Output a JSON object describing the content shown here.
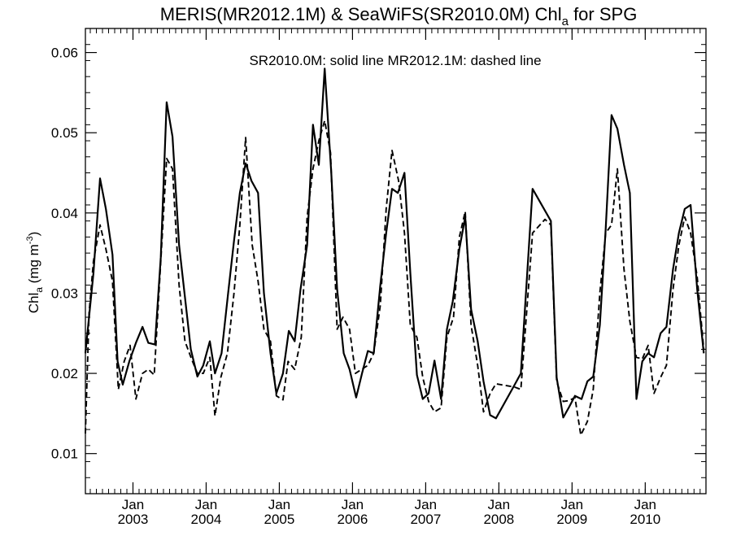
{
  "chart_data": {
    "type": "line",
    "title_main": "MERIS(MR2012.1M) & SeaWiFS(SR2010.0M)  Chl",
    "title_sub": "a",
    "title_tail": " for SPG",
    "annotation": "SR2010.0M: solid line   MR2012.1M: dashed line",
    "ylabel_main": "Chl",
    "ylabel_sub": "a",
    "ylabel_unit_open": " (mg m",
    "ylabel_unit_sup": "-3",
    "ylabel_unit_close": ")",
    "xlim": [
      2002.35,
      2010.83
    ],
    "ylim": [
      0.005,
      0.063
    ],
    "yticks": [
      {
        "value": 0.01,
        "label": "0.01"
      },
      {
        "value": 0.02,
        "label": "0.02"
      },
      {
        "value": 0.03,
        "label": "0.03"
      },
      {
        "value": 0.04,
        "label": "0.04"
      },
      {
        "value": 0.05,
        "label": "0.05"
      },
      {
        "value": 0.06,
        "label": "0.06"
      }
    ],
    "xticks": [
      {
        "value": 2003.0,
        "month": "Jan",
        "year": "2003"
      },
      {
        "value": 2004.0,
        "month": "Jan",
        "year": "2004"
      },
      {
        "value": 2005.0,
        "month": "Jan",
        "year": "2005"
      },
      {
        "value": 2006.0,
        "month": "Jan",
        "year": "2006"
      },
      {
        "value": 2007.0,
        "month": "Jan",
        "year": "2007"
      },
      {
        "value": 2008.0,
        "month": "Jan",
        "year": "2008"
      },
      {
        "value": 2009.0,
        "month": "Jan",
        "year": "2009"
      },
      {
        "value": 2010.0,
        "month": "Jan",
        "year": "2010"
      }
    ],
    "grid": false,
    "series": [
      {
        "name": "SR2010.0M",
        "style": "solid",
        "points": [
          [
            2002.35,
            0.0225
          ],
          [
            2002.46,
            0.0325
          ],
          [
            2002.55,
            0.0443
          ],
          [
            2002.63,
            0.0405
          ],
          [
            2002.72,
            0.0348
          ],
          [
            2002.79,
            0.0215
          ],
          [
            2002.86,
            0.0186
          ],
          [
            2002.95,
            0.0215
          ],
          [
            2003.04,
            0.0238
          ],
          [
            2003.13,
            0.0258
          ],
          [
            2003.21,
            0.0238
          ],
          [
            2003.3,
            0.0236
          ],
          [
            2003.38,
            0.0345
          ],
          [
            2003.46,
            0.0538
          ],
          [
            2003.54,
            0.0495
          ],
          [
            2003.63,
            0.036
          ],
          [
            2003.71,
            0.0295
          ],
          [
            2003.79,
            0.023
          ],
          [
            2003.88,
            0.0196
          ],
          [
            2003.96,
            0.021
          ],
          [
            2004.05,
            0.024
          ],
          [
            2004.12,
            0.02
          ],
          [
            2004.21,
            0.0225
          ],
          [
            2004.3,
            0.03
          ],
          [
            2004.38,
            0.0365
          ],
          [
            2004.46,
            0.0425
          ],
          [
            2004.54,
            0.0462
          ],
          [
            2004.62,
            0.044
          ],
          [
            2004.71,
            0.0425
          ],
          [
            2004.79,
            0.03
          ],
          [
            2004.88,
            0.0225
          ],
          [
            2004.96,
            0.0175
          ],
          [
            2005.05,
            0.02
          ],
          [
            2005.13,
            0.0253
          ],
          [
            2005.21,
            0.024
          ],
          [
            2005.29,
            0.0305
          ],
          [
            2005.38,
            0.036
          ],
          [
            2005.46,
            0.051
          ],
          [
            2005.54,
            0.046
          ],
          [
            2005.62,
            0.058
          ],
          [
            2005.71,
            0.045
          ],
          [
            2005.79,
            0.0305
          ],
          [
            2005.88,
            0.0225
          ],
          [
            2005.96,
            0.0205
          ],
          [
            2006.05,
            0.017
          ],
          [
            2006.13,
            0.02
          ],
          [
            2006.21,
            0.0228
          ],
          [
            2006.29,
            0.0225
          ],
          [
            2006.38,
            0.031
          ],
          [
            2006.46,
            0.0375
          ],
          [
            2006.54,
            0.043
          ],
          [
            2006.62,
            0.0425
          ],
          [
            2006.71,
            0.045
          ],
          [
            2006.79,
            0.0325
          ],
          [
            2006.88,
            0.0198
          ],
          [
            2006.96,
            0.0168
          ],
          [
            2007.04,
            0.0175
          ],
          [
            2007.12,
            0.0216
          ],
          [
            2007.21,
            0.0168
          ],
          [
            2007.29,
            0.0255
          ],
          [
            2007.37,
            0.029
          ],
          [
            2007.46,
            0.0355
          ],
          [
            2007.54,
            0.0395
          ],
          [
            2007.62,
            0.028
          ],
          [
            2007.71,
            0.024
          ],
          [
            2007.79,
            0.019
          ],
          [
            2007.88,
            0.0148
          ],
          [
            2007.96,
            0.0144
          ],
          [
            2008.21,
            0.0185
          ],
          [
            2008.3,
            0.02
          ],
          [
            2008.46,
            0.043
          ],
          [
            2008.71,
            0.039
          ],
          [
            2008.79,
            0.0195
          ],
          [
            2008.88,
            0.0145
          ],
          [
            2008.96,
            0.0158
          ],
          [
            2009.04,
            0.0172
          ],
          [
            2009.13,
            0.0168
          ],
          [
            2009.21,
            0.019
          ],
          [
            2009.29,
            0.0196
          ],
          [
            2009.38,
            0.026
          ],
          [
            2009.46,
            0.038
          ],
          [
            2009.54,
            0.0522
          ],
          [
            2009.62,
            0.0505
          ],
          [
            2009.71,
            0.046
          ],
          [
            2009.79,
            0.0425
          ],
          [
            2009.88,
            0.0168
          ],
          [
            2009.96,
            0.0215
          ],
          [
            2010.04,
            0.0225
          ],
          [
            2010.12,
            0.022
          ],
          [
            2010.21,
            0.025
          ],
          [
            2010.29,
            0.0258
          ],
          [
            2010.38,
            0.033
          ],
          [
            2010.46,
            0.0375
          ],
          [
            2010.54,
            0.0405
          ],
          [
            2010.62,
            0.041
          ],
          [
            2010.71,
            0.0305
          ],
          [
            2010.8,
            0.0225
          ]
        ]
      },
      {
        "name": "MR2012.1M",
        "style": "dashed",
        "points": [
          [
            2002.35,
            0.0125
          ],
          [
            2002.4,
            0.0275
          ],
          [
            2002.46,
            0.034
          ],
          [
            2002.55,
            0.0385
          ],
          [
            2002.63,
            0.0355
          ],
          [
            2002.72,
            0.0315
          ],
          [
            2002.8,
            0.018
          ],
          [
            2002.88,
            0.0215
          ],
          [
            2002.96,
            0.0235
          ],
          [
            2003.04,
            0.0168
          ],
          [
            2003.13,
            0.02
          ],
          [
            2003.21,
            0.0205
          ],
          [
            2003.29,
            0.0198
          ],
          [
            2003.38,
            0.034
          ],
          [
            2003.46,
            0.0468
          ],
          [
            2003.54,
            0.0455
          ],
          [
            2003.63,
            0.031
          ],
          [
            2003.71,
            0.024
          ],
          [
            2003.8,
            0.0218
          ],
          [
            2003.88,
            0.02
          ],
          [
            2003.96,
            0.02
          ],
          [
            2004.05,
            0.022
          ],
          [
            2004.12,
            0.0147
          ],
          [
            2004.2,
            0.0195
          ],
          [
            2004.29,
            0.0225
          ],
          [
            2004.38,
            0.03
          ],
          [
            2004.46,
            0.0385
          ],
          [
            2004.54,
            0.0494
          ],
          [
            2004.63,
            0.036
          ],
          [
            2004.71,
            0.0315
          ],
          [
            2004.79,
            0.0255
          ],
          [
            2004.88,
            0.024
          ],
          [
            2004.96,
            0.0172
          ],
          [
            2005.05,
            0.0167
          ],
          [
            2005.12,
            0.0215
          ],
          [
            2005.21,
            0.0205
          ],
          [
            2005.3,
            0.0245
          ],
          [
            2005.38,
            0.0395
          ],
          [
            2005.46,
            0.0455
          ],
          [
            2005.54,
            0.049
          ],
          [
            2005.62,
            0.0515
          ],
          [
            2005.7,
            0.0475
          ],
          [
            2005.79,
            0.0255
          ],
          [
            2005.87,
            0.027
          ],
          [
            2005.96,
            0.0255
          ],
          [
            2006.04,
            0.02
          ],
          [
            2006.21,
            0.021
          ],
          [
            2006.29,
            0.0225
          ],
          [
            2006.38,
            0.0285
          ],
          [
            2006.46,
            0.0405
          ],
          [
            2006.54,
            0.0478
          ],
          [
            2006.63,
            0.044
          ],
          [
            2006.71,
            0.0375
          ],
          [
            2006.79,
            0.026
          ],
          [
            2006.88,
            0.0245
          ],
          [
            2006.96,
            0.0195
          ],
          [
            2007.04,
            0.0165
          ],
          [
            2007.12,
            0.0152
          ],
          [
            2007.21,
            0.0157
          ],
          [
            2007.29,
            0.0245
          ],
          [
            2007.38,
            0.027
          ],
          [
            2007.46,
            0.037
          ],
          [
            2007.54,
            0.0402
          ],
          [
            2007.62,
            0.026
          ],
          [
            2007.71,
            0.021
          ],
          [
            2007.79,
            0.0152
          ],
          [
            2007.88,
            0.0175
          ],
          [
            2007.96,
            0.0187
          ],
          [
            2008.21,
            0.0183
          ],
          [
            2008.3,
            0.018
          ],
          [
            2008.46,
            0.0375
          ],
          [
            2008.63,
            0.0392
          ],
          [
            2008.71,
            0.0385
          ],
          [
            2008.79,
            0.019
          ],
          [
            2008.88,
            0.0165
          ],
          [
            2008.96,
            0.0166
          ],
          [
            2009.04,
            0.017
          ],
          [
            2009.12,
            0.0123
          ],
          [
            2009.21,
            0.014
          ],
          [
            2009.29,
            0.018
          ],
          [
            2009.38,
            0.03
          ],
          [
            2009.46,
            0.0375
          ],
          [
            2009.54,
            0.0385
          ],
          [
            2009.62,
            0.0455
          ],
          [
            2009.71,
            0.033
          ],
          [
            2009.79,
            0.0265
          ],
          [
            2009.88,
            0.022
          ],
          [
            2009.96,
            0.0218
          ],
          [
            2010.04,
            0.0235
          ],
          [
            2010.12,
            0.0175
          ],
          [
            2010.21,
            0.0195
          ],
          [
            2010.29,
            0.021
          ],
          [
            2010.38,
            0.0305
          ],
          [
            2010.46,
            0.036
          ],
          [
            2010.54,
            0.0395
          ],
          [
            2010.62,
            0.0375
          ],
          [
            2010.71,
            0.032
          ],
          [
            2010.8,
            0.023
          ]
        ]
      }
    ]
  }
}
